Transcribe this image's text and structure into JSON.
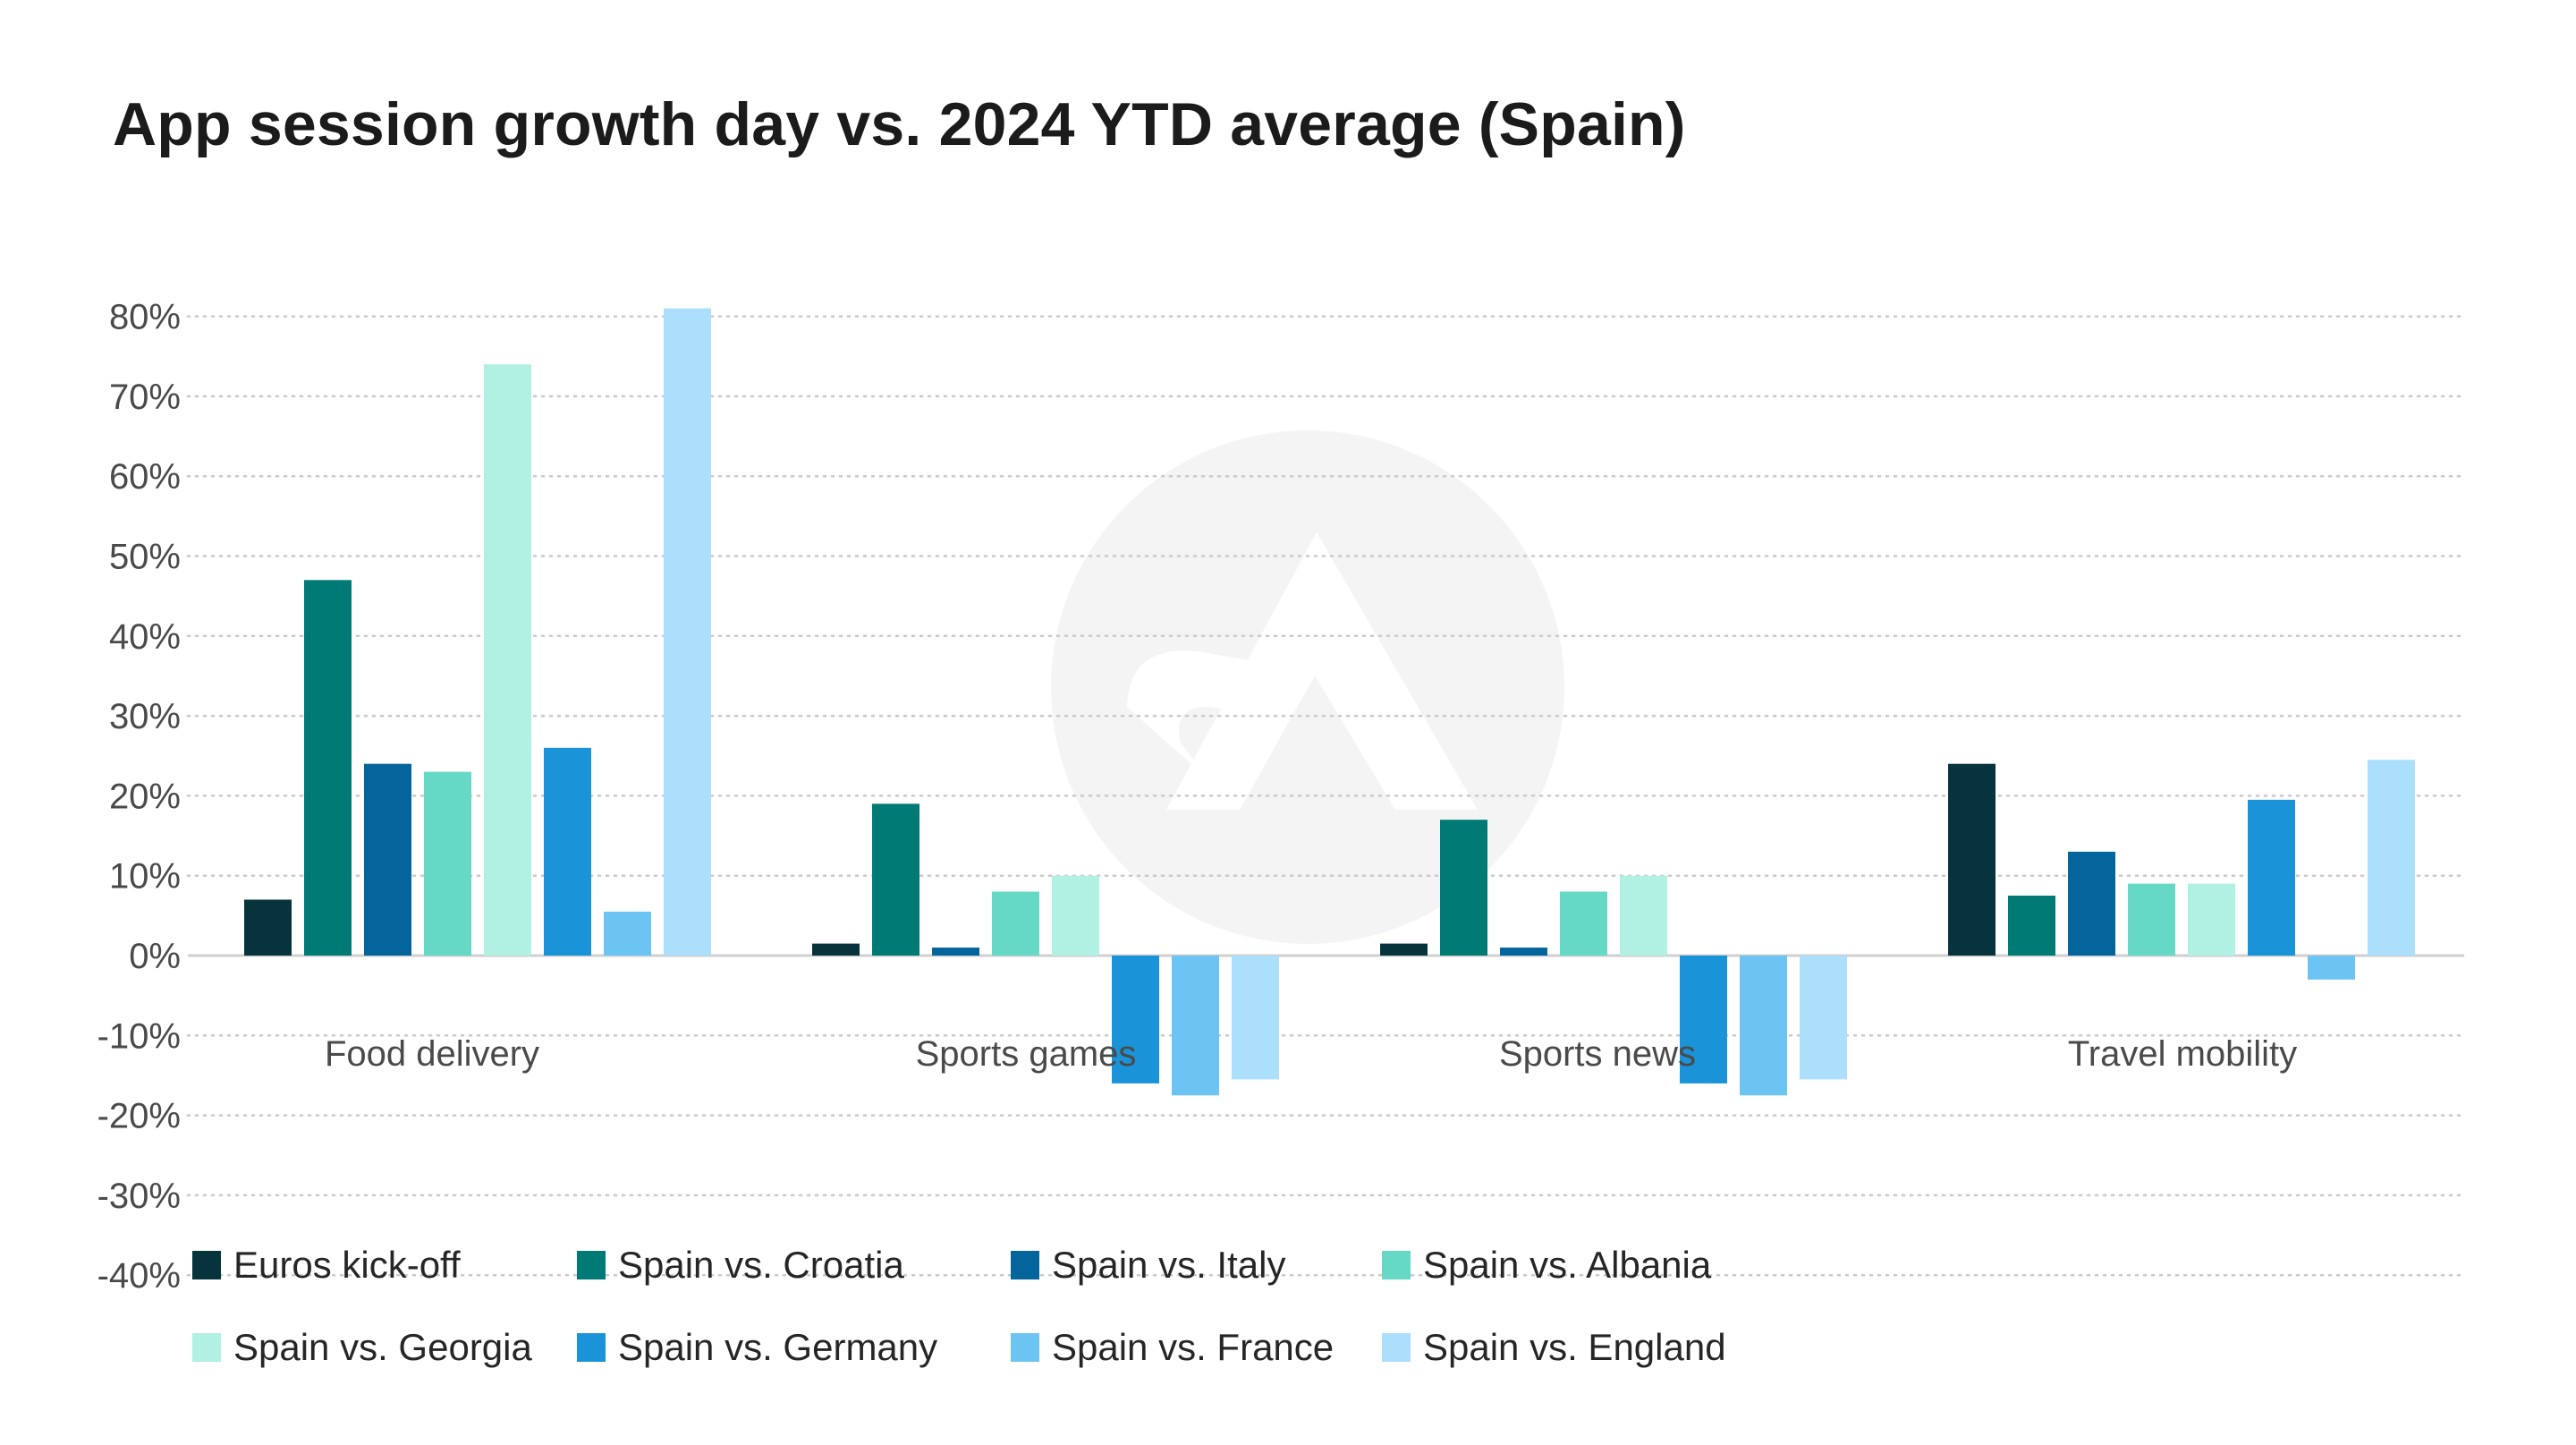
{
  "title": "App session growth day vs. 2024 YTD average (Spain)",
  "chart_data": {
    "type": "bar",
    "title": "App session growth day vs. 2024 YTD average (Spain)",
    "xlabel": "",
    "ylabel": "",
    "ylim": [
      -40,
      80
    ],
    "yticks": [
      80,
      70,
      60,
      50,
      40,
      30,
      20,
      10,
      0,
      -10,
      -20,
      -30,
      -40
    ],
    "ytick_labels": [
      "80%",
      "70%",
      "60%",
      "50%",
      "40%",
      "30%",
      "20%",
      "10%",
      "0%",
      "-10%",
      "-20%",
      "-30%",
      "-40%"
    ],
    "grid": true,
    "legend_position": "bottom",
    "categories": [
      "Food delivery",
      "Sports games",
      "Sports news",
      "Travel mobility"
    ],
    "series": [
      {
        "name": "Euros kick-off",
        "color": "#07333d",
        "values": [
          7,
          1.5,
          1.5,
          24
        ]
      },
      {
        "name": "Spain vs. Croatia",
        "color": "#007a74",
        "values": [
          47,
          19,
          17,
          7.5
        ]
      },
      {
        "name": "Spain vs. Italy",
        "color": "#04649c",
        "values": [
          24,
          1,
          1,
          13
        ]
      },
      {
        "name": "Spain vs. Albania",
        "color": "#66d9c6",
        "values": [
          23,
          8,
          8,
          9
        ]
      },
      {
        "name": "Spain vs. Georgia",
        "color": "#b0f1e3",
        "values": [
          74,
          10,
          10,
          9
        ]
      },
      {
        "name": "Spain vs. Germany",
        "color": "#1a93d9",
        "values": [
          26,
          -16,
          -16,
          19.5
        ]
      },
      {
        "name": "Spain vs. France",
        "color": "#6cc4f2",
        "values": [
          5.5,
          -17.5,
          -17.5,
          -3
        ]
      },
      {
        "name": "Spain vs. England",
        "color": "#acdffc",
        "values": [
          81,
          -15.5,
          -15.5,
          24.5
        ]
      }
    ]
  }
}
